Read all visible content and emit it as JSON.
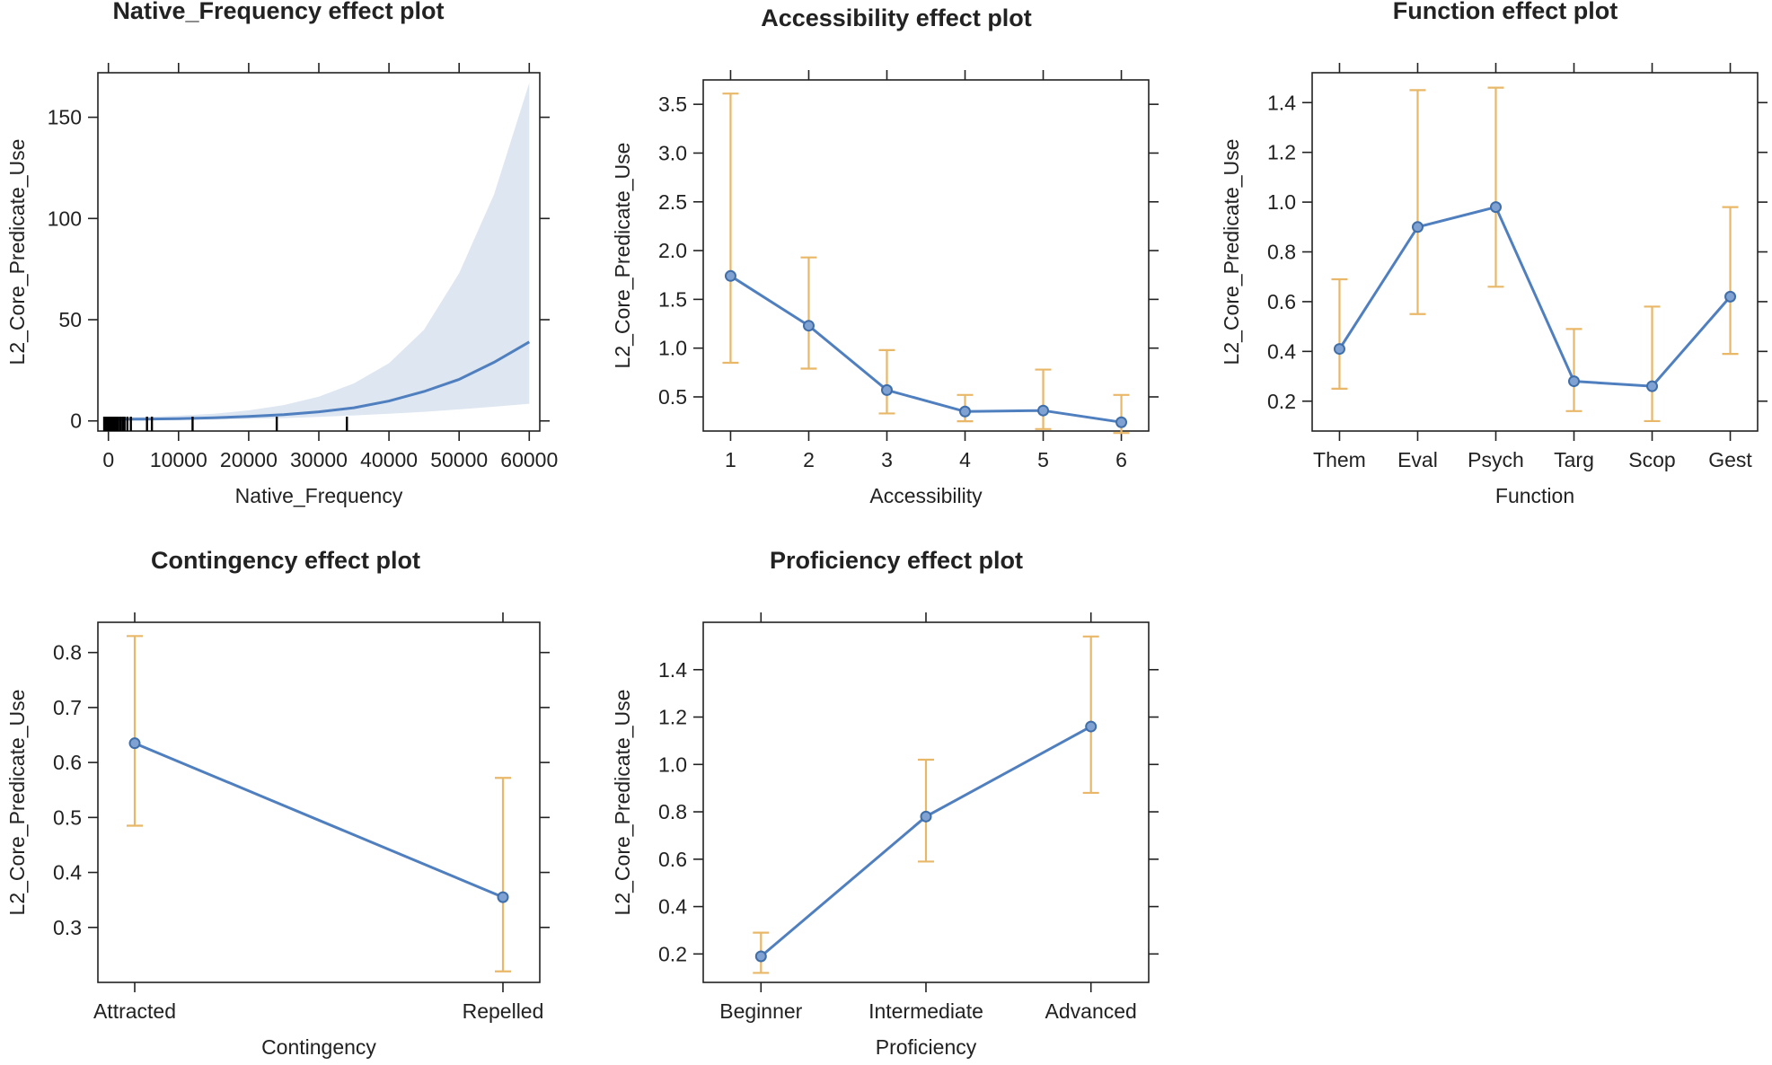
{
  "chart_data": [
    {
      "id": "native",
      "type": "line",
      "title": "Native_Frequency effect plot",
      "xlabel": "Native_Frequency",
      "ylabel": "L2_Core_Predicate_Use",
      "xlim": [
        -1500,
        61500
      ],
      "ylim": [
        -5,
        172
      ],
      "xticks": [
        0,
        10000,
        20000,
        30000,
        40000,
        50000,
        60000
      ],
      "yticks": [
        0,
        50,
        100,
        150
      ],
      "x": [
        0,
        5000,
        10000,
        15000,
        20000,
        25000,
        30000,
        35000,
        40000,
        45000,
        50000,
        55000,
        60000
      ],
      "y": [
        0.8,
        0.9,
        1.1,
        1.5,
        2.2,
        3.1,
        4.5,
        6.5,
        9.8,
        14.5,
        20.5,
        29.0,
        39.0
      ],
      "lower": [
        0.3,
        0.4,
        0.5,
        0.7,
        1.0,
        1.4,
        2.0,
        2.7,
        3.5,
        4.5,
        5.7,
        7.0,
        8.5
      ],
      "upper": [
        1.8,
        2.0,
        2.6,
        3.5,
        5.2,
        7.8,
        12.0,
        18.5,
        28.5,
        45.0,
        73.0,
        112.0,
        167.0
      ],
      "rug": [
        -600,
        -400,
        -200,
        0,
        200,
        400,
        600,
        800,
        1000,
        1200,
        1400,
        1700,
        2000,
        2300,
        2700,
        3200,
        5500,
        6200,
        12000,
        24000,
        34000
      ]
    },
    {
      "id": "access",
      "type": "line",
      "title": "Accessibility effect plot",
      "xlabel": "Accessibility",
      "ylabel": "L2_Core_Predicate_Use",
      "categories": [
        "1",
        "2",
        "3",
        "4",
        "5",
        "6"
      ],
      "ylim": [
        0.15,
        3.75
      ],
      "yticks": [
        0.5,
        1.0,
        1.5,
        2.0,
        2.5,
        3.0,
        3.5
      ],
      "yticklabels": [
        "0.5",
        "1.0",
        "1.5",
        "2.0",
        "2.5",
        "3.0",
        "3.5"
      ],
      "values": [
        1.74,
        1.23,
        0.57,
        0.35,
        0.36,
        0.24
      ],
      "lower": [
        0.85,
        0.79,
        0.33,
        0.25,
        0.17,
        0.13
      ],
      "upper": [
        3.61,
        1.93,
        0.98,
        0.52,
        0.78,
        0.52
      ]
    },
    {
      "id": "function",
      "type": "line",
      "title": "Function effect plot",
      "xlabel": "Function",
      "ylabel": "L2_Core_Predicate_Use",
      "categories": [
        "Them",
        "Eval",
        "Psych",
        "Targ",
        "Scop",
        "Gest"
      ],
      "ylim": [
        0.08,
        1.52
      ],
      "yticks": [
        0.2,
        0.4,
        0.6,
        0.8,
        1.0,
        1.2,
        1.4
      ],
      "yticklabels": [
        "0.2",
        "0.4",
        "0.6",
        "0.8",
        "1.0",
        "1.2",
        "1.4"
      ],
      "values": [
        0.41,
        0.9,
        0.98,
        0.28,
        0.26,
        0.62
      ],
      "lower": [
        0.25,
        0.55,
        0.66,
        0.16,
        0.12,
        0.39
      ],
      "upper": [
        0.69,
        1.45,
        1.46,
        0.49,
        0.58,
        0.98
      ]
    },
    {
      "id": "contingency",
      "type": "line",
      "title": "Contingency effect plot",
      "xlabel": "Contingency",
      "ylabel": "L2_Core_Predicate_Use",
      "categories": [
        "Attracted",
        "Repelled"
      ],
      "ylim": [
        0.2,
        0.855
      ],
      "yticks": [
        0.3,
        0.4,
        0.5,
        0.6,
        0.7,
        0.8
      ],
      "yticklabels": [
        "0.3",
        "0.4",
        "0.5",
        "0.6",
        "0.7",
        "0.8"
      ],
      "values": [
        0.635,
        0.355
      ],
      "lower": [
        0.485,
        0.22
      ],
      "upper": [
        0.83,
        0.572
      ]
    },
    {
      "id": "proficiency",
      "type": "line",
      "title": "Proficiency effect plot",
      "xlabel": "Proficiency",
      "ylabel": "L2_Core_Predicate_Use",
      "categories": [
        "Beginner",
        "Intermediate",
        "Advanced"
      ],
      "ylim": [
        0.08,
        1.6
      ],
      "yticks": [
        0.2,
        0.4,
        0.6,
        0.8,
        1.0,
        1.2,
        1.4
      ],
      "yticklabels": [
        "0.2",
        "0.4",
        "0.6",
        "0.8",
        "1.0",
        "1.2",
        "1.4"
      ],
      "values": [
        0.19,
        0.78,
        1.16
      ],
      "lower": [
        0.12,
        0.59,
        0.88
      ],
      "upper": [
        0.29,
        1.02,
        1.54
      ]
    }
  ]
}
